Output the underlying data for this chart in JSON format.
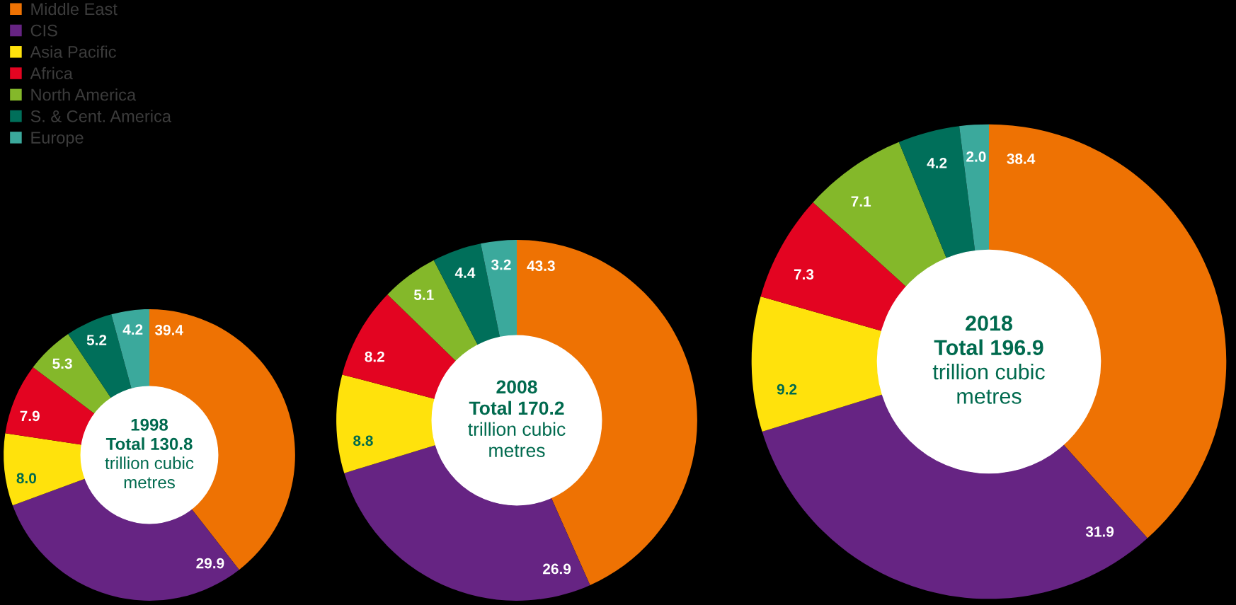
{
  "chart_data": [
    {
      "type": "donut",
      "title": "1998",
      "annotations": [
        "Total 130.8",
        "trillion cubic",
        "metres"
      ],
      "legend": "top left",
      "categories": [
        "Middle East",
        "CIS",
        "Asia Pacific",
        "Africa",
        "North America",
        "S. & Cent. America",
        "Europe"
      ],
      "colors": [
        "#ee7203",
        "#662483",
        "#ffe20c",
        "#e30421",
        "#84b82a",
        "#006f5a",
        "#3ba99c"
      ],
      "values": [
        39.4,
        29.9,
        8.0,
        7.9,
        5.3,
        5.2,
        4.2
      ],
      "value_labels": [
        "39.4",
        "29.9",
        "8.0",
        "7.9",
        "5.3",
        "5.2",
        "4.2"
      ]
    },
    {
      "type": "donut",
      "title": "2008",
      "annotations": [
        "Total 170.2",
        "trillion cubic",
        "metres"
      ],
      "colors": [
        "#ee7203",
        "#662483",
        "#ffe20c",
        "#e30421",
        "#84b82a",
        "#006f5a",
        "#3ba99c"
      ],
      "values": [
        43.3,
        26.9,
        8.8,
        8.2,
        5.1,
        4.4,
        3.2
      ],
      "value_labels": [
        "43.3",
        "26.9",
        "8.8",
        "8.2",
        "5.1",
        "4.4",
        "3.2"
      ]
    },
    {
      "type": "donut",
      "title": "2018",
      "annotations": [
        "Total 196.9",
        "trillion cubic",
        "metres"
      ],
      "colors": [
        "#ee7203",
        "#662483",
        "#ffe20c",
        "#e30421",
        "#84b82a",
        "#006f5a",
        "#3ba99c"
      ],
      "values": [
        38.4,
        31.9,
        9.2,
        7.3,
        7.1,
        4.2,
        2.0
      ],
      "value_labels": [
        "38.4",
        "31.9",
        "9.2",
        "7.3",
        "7.1",
        "4.2",
        "2.0"
      ]
    }
  ]
}
